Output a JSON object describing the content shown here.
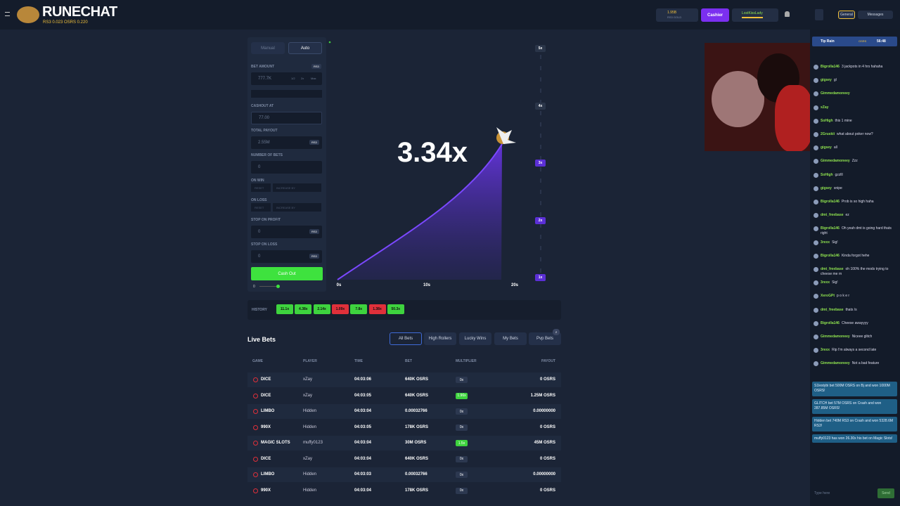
{
  "header": {
    "logo": "RUNECHAT",
    "rs3_rate": "RS3 0.023",
    "osrs_rate": "OSRS 0.220",
    "balance": "1.95B",
    "balance_unit": "RS3 GOLD",
    "cashier": "Cashier",
    "username": "LostKissLady"
  },
  "bet_panel": {
    "tabs": [
      "Manual",
      "Auto"
    ],
    "fields": [
      {
        "label": "BET AMOUNT",
        "tag": "RS3",
        "value": "777.7K",
        "buttons": [
          "1/2",
          "2x",
          "Max"
        ]
      },
      {
        "label": "CASHOUT AT",
        "value": "77.00"
      },
      {
        "label": "TOTAL PAYOUT",
        "value": "2.55M",
        "suffix": "RS3"
      },
      {
        "label": "NUMBER OF BETS",
        "value": "0"
      },
      {
        "label": "ON WIN",
        "buttons": [
          "RESET",
          "INCREASE BY"
        ]
      },
      {
        "label": "ON LOSS",
        "buttons": [
          "RESET",
          "INCREASE BY"
        ]
      },
      {
        "label": "STOP ON PROFIT",
        "value": "0",
        "suffix": "RS3"
      },
      {
        "label": "STOP ON LOSS",
        "value": "0",
        "suffix": "RS3"
      }
    ],
    "action": "Cash Out",
    "slider": "0"
  },
  "graph": {
    "multiplier": "3.34x",
    "x_labels": [
      "0s",
      "10s",
      "20s"
    ],
    "y_labels": [
      {
        "text": "5x",
        "color": "#2a3549"
      },
      {
        "text": "4x",
        "color": "#2a3549"
      },
      {
        "text": "3x",
        "color": "#5b2fd6"
      },
      {
        "text": "2x",
        "color": "#5b2fd6"
      },
      {
        "text": "1x",
        "color": "#5b2fd6"
      }
    ]
  },
  "history": {
    "label": "HISTORY",
    "items": [
      {
        "text": "11.1x",
        "color": "#3ed33e"
      },
      {
        "text": "4.38x",
        "color": "#3ed33e"
      },
      {
        "text": "2.14x",
        "color": "#3ed33e"
      },
      {
        "text": "1.09x",
        "color": "#e0303a"
      },
      {
        "text": "7.8x",
        "color": "#3ed33e"
      },
      {
        "text": "1.38x",
        "color": "#e0303a"
      },
      {
        "text": "50.3x",
        "color": "#3ed33e"
      }
    ]
  },
  "live_bets": {
    "title": "Live Bets",
    "tabs": [
      "All Bets",
      "High Rollers",
      "Lucky Wins",
      "My Bets",
      "Pvp Bets"
    ],
    "pvp_badge": "2",
    "columns": [
      "GAME",
      "PLAYER",
      "TIME",
      "BET",
      "MULTIPLIER",
      "PAYOUT"
    ],
    "rows": [
      {
        "game": "DICE",
        "player": "xZay",
        "time": "04:03:06",
        "bet": "640K OSRS",
        "multiplier": "0x",
        "multiplier_color": "#2c3850",
        "payout": "0 OSRS"
      },
      {
        "game": "DICE",
        "player": "xZay",
        "time": "04:03:05",
        "bet": "640K OSRS",
        "multiplier": "1.96x",
        "multiplier_color": "#3ed33e",
        "payout": "1.25M OSRS"
      },
      {
        "game": "LIMBO",
        "player": "Hidden",
        "time": "04:03:04",
        "bet": "0.00032766",
        "multiplier": "0x",
        "multiplier_color": "#2c3850",
        "payout": "0.00000000"
      },
      {
        "game": "990X",
        "player": "Hidden",
        "time": "04:03:05",
        "bet": "178K OSRS",
        "multiplier": "0x",
        "multiplier_color": "#2c3850",
        "payout": "0 OSRS"
      },
      {
        "game": "MAGIC SLOTS",
        "player": "muffy0123",
        "time": "04:03:04",
        "bet": "30M OSRS",
        "multiplier": "1.5x",
        "multiplier_color": "#3ed33e",
        "payout": "45M OSRS"
      },
      {
        "game": "DICE",
        "player": "xZay",
        "time": "04:03:04",
        "bet": "640K OSRS",
        "multiplier": "0x",
        "multiplier_color": "#2c3850",
        "payout": "0 OSRS"
      },
      {
        "game": "LIMBO",
        "player": "Hidden",
        "time": "04:03:03",
        "bet": "0.00032766",
        "multiplier": "0x",
        "multiplier_color": "#2c3850",
        "payout": "0.00000000"
      },
      {
        "game": "990X",
        "player": "Hidden",
        "time": "04:03:04",
        "bet": "178K OSRS",
        "multiplier": "0x",
        "multiplier_color": "#2c3850",
        "payout": "0 OSRS"
      }
    ]
  },
  "chat": {
    "tabs": [
      "General",
      "Messages"
    ],
    "tip_rain": {
      "title": "Tip Rain",
      "currency": "OSRS",
      "timer": "56:48"
    },
    "messages": [
      {
        "user": "Bigrolla146",
        "text": "3 jackpots in 4 hrs hahaha"
      },
      {
        "user": "gigsey",
        "text": "gl"
      },
      {
        "user": "Gimmedamoneey"
      },
      {
        "user": "xZay"
      },
      {
        "user": "SoHigh",
        "text": "this 1 mine"
      },
      {
        "user": "2Gruskii",
        "text": "what about poker now?"
      },
      {
        "user": "gigsey",
        "text": "all"
      },
      {
        "user": "Gimmedamoneey",
        "text": "Zzz"
      },
      {
        "user": "SoHigh",
        "text": "gzzlll"
      },
      {
        "user": "gigsey",
        "text": "snipe"
      },
      {
        "user": "Bigrolla146",
        "text": "Prob is so high haha"
      },
      {
        "user": "dmt_freebase",
        "text": "ez"
      },
      {
        "user": "Bigrolla146",
        "text": "Oh yeah dmt is going hard thats right"
      },
      {
        "user": "3rexx",
        "text": "Sig!"
      },
      {
        "user": "Bigrolla146",
        "text": "Kinda forgot hehe"
      },
      {
        "user": "dmt_freebase",
        "text": "oh 100% the mods trying to cheese me rn"
      },
      {
        "user": "3rexx",
        "text": "Sig!"
      },
      {
        "user": "XeroGPt",
        "text": "p o k e r"
      },
      {
        "user": "dmt_freebase",
        "text": "thats /s"
      },
      {
        "user": "Bigrolla146",
        "text": "Cheese awayyyy"
      },
      {
        "user": "Gimmedamoneey",
        "text": "Niceee glitch"
      },
      {
        "user": "3rexx",
        "text": "Rip I'm always a second late"
      },
      {
        "user": "Gimmedamoneey",
        "text": "Not a bad feature"
      }
    ],
    "system": [
      "S1lestybi bet 500M OSRS on Bj and won 1000M OSRS!",
      "GLITCH bet 57M OSRS on Crash and won 287.85M OSRS!",
      "Hidden bet 740M RS3 on Crash and won 5328.6M RS3!",
      "muffy0123 has won 26.30x his bet on Magic Slots!"
    ],
    "input_placeholder": "Type here",
    "send": "Send"
  }
}
